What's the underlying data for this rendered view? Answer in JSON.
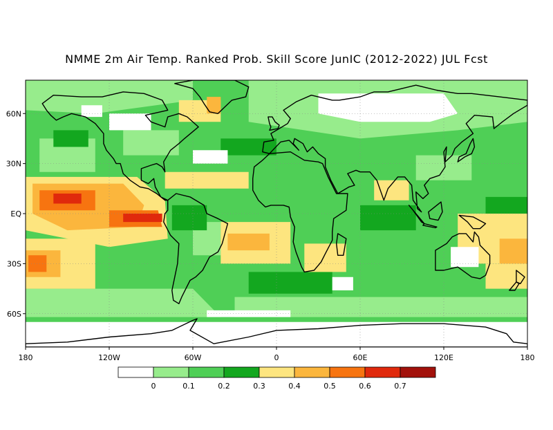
{
  "title": "NMME 2m Air Temp. Ranked Prob. Skill Score JunIC (2012-2022) JUL Fcst",
  "map": {
    "projection": "equirectangular",
    "lon_range": [
      -180,
      180
    ],
    "lat_range": [
      -80,
      80
    ],
    "lat_labels": [
      "60N",
      "30N",
      "EQ",
      "30S",
      "60S"
    ],
    "lat_values": [
      60,
      30,
      0,
      -30,
      -60
    ],
    "lon_labels": [
      "180",
      "120W",
      "60W",
      "0",
      "60E",
      "120E",
      "180"
    ],
    "lon_values": [
      -180,
      -120,
      -60,
      0,
      60,
      120,
      180
    ],
    "grid": "dotted",
    "land_outline_color": "#000000"
  },
  "colorbar": {
    "bins": [
      {
        "color": "#ffffff"
      },
      {
        "color": "#97ec8c"
      },
      {
        "color": "#4fcf56"
      },
      {
        "color": "#13a71f"
      },
      {
        "color": "#fde57f"
      },
      {
        "color": "#fbb63d"
      },
      {
        "color": "#f77410"
      },
      {
        "color": "#e0290c"
      },
      {
        "color": "#a2110b"
      }
    ],
    "labels": [
      "0",
      "0.1",
      "0.2",
      "0.3",
      "0.4",
      "0.5",
      "0.6",
      "0.7"
    ]
  }
}
